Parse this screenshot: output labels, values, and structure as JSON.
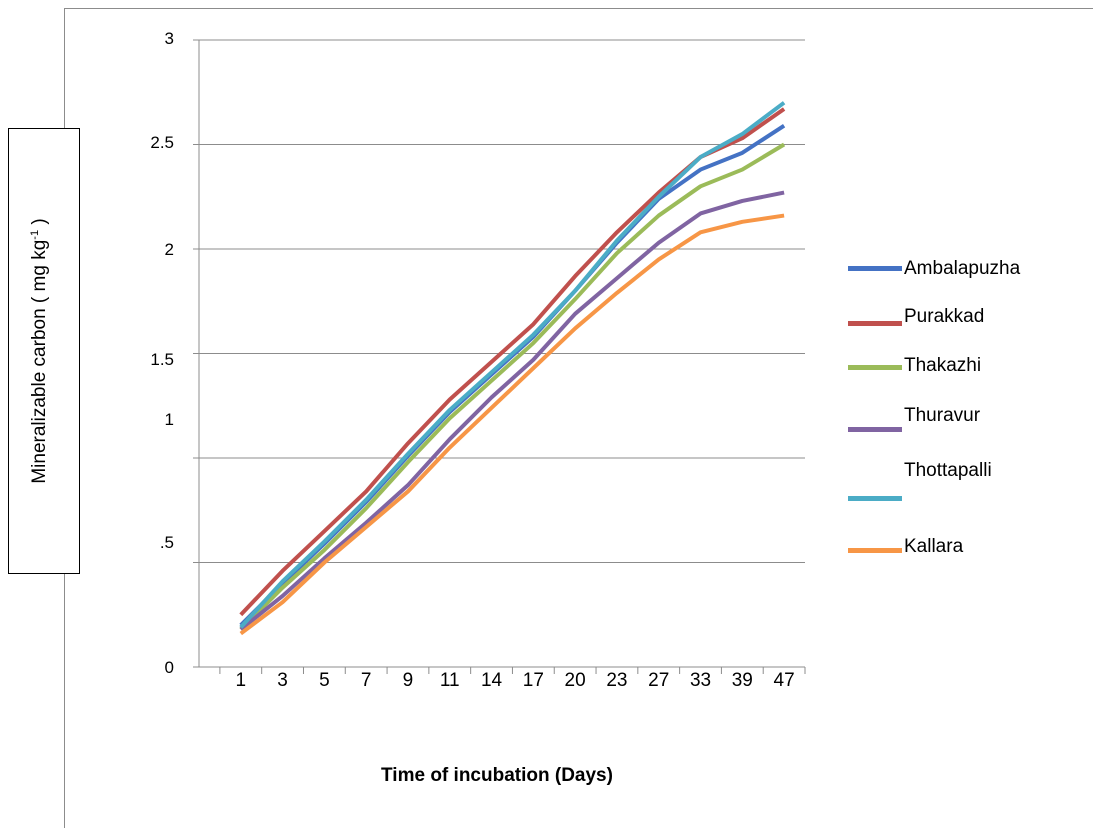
{
  "chart_data": {
    "type": "line",
    "title": "",
    "xlabel": "Time of incubation (Days)",
    "ylabel_main": "Mineralizable  carbon  ( mg kg",
    "ylabel_sup": "-1",
    "ylabel_end": " )",
    "ylim": [
      0,
      3
    ],
    "yticks": [
      "0",
      ".5",
      "1",
      "1.5",
      "2",
      "2.5",
      "3"
    ],
    "categories": [
      "1",
      "3",
      "5",
      "7",
      "9",
      "11",
      "14",
      "17",
      "20",
      "23",
      "27",
      "33",
      "39",
      "47"
    ],
    "grid": true,
    "legend_position": "right",
    "series": [
      {
        "name": "Ambalapuzha",
        "color": "#4472c4",
        "values": [
          0.2,
          0.4,
          0.59,
          0.79,
          1.01,
          1.22,
          1.4,
          1.58,
          1.8,
          2.03,
          2.24,
          2.38,
          2.46,
          2.59
        ]
      },
      {
        "name": "Purakkad",
        "color": "#c0504d",
        "values": [
          0.25,
          0.46,
          0.65,
          0.84,
          1.07,
          1.28,
          1.46,
          1.64,
          1.87,
          2.08,
          2.27,
          2.44,
          2.53,
          2.67
        ]
      },
      {
        "name": "Thakazhi",
        "color": "#9bbb59",
        "values": [
          0.18,
          0.38,
          0.56,
          0.76,
          0.98,
          1.19,
          1.37,
          1.55,
          1.76,
          1.98,
          2.16,
          2.3,
          2.38,
          2.5
        ]
      },
      {
        "name": "Thuravur",
        "color": "#8064a2",
        "values": [
          0.18,
          0.34,
          0.52,
          0.69,
          0.87,
          1.09,
          1.29,
          1.47,
          1.69,
          1.86,
          2.03,
          2.17,
          2.23,
          2.27
        ]
      },
      {
        "name": "Thottapalli",
        "color": "#4bacc6",
        "values": [
          0.19,
          0.41,
          0.6,
          0.8,
          1.02,
          1.23,
          1.41,
          1.59,
          1.8,
          2.04,
          2.25,
          2.44,
          2.55,
          2.7
        ]
      },
      {
        "name": "Kallara",
        "color": "#f79646",
        "values": [
          0.16,
          0.31,
          0.5,
          0.67,
          0.84,
          1.05,
          1.24,
          1.43,
          1.62,
          1.79,
          1.95,
          2.08,
          2.13,
          2.16
        ]
      }
    ]
  }
}
